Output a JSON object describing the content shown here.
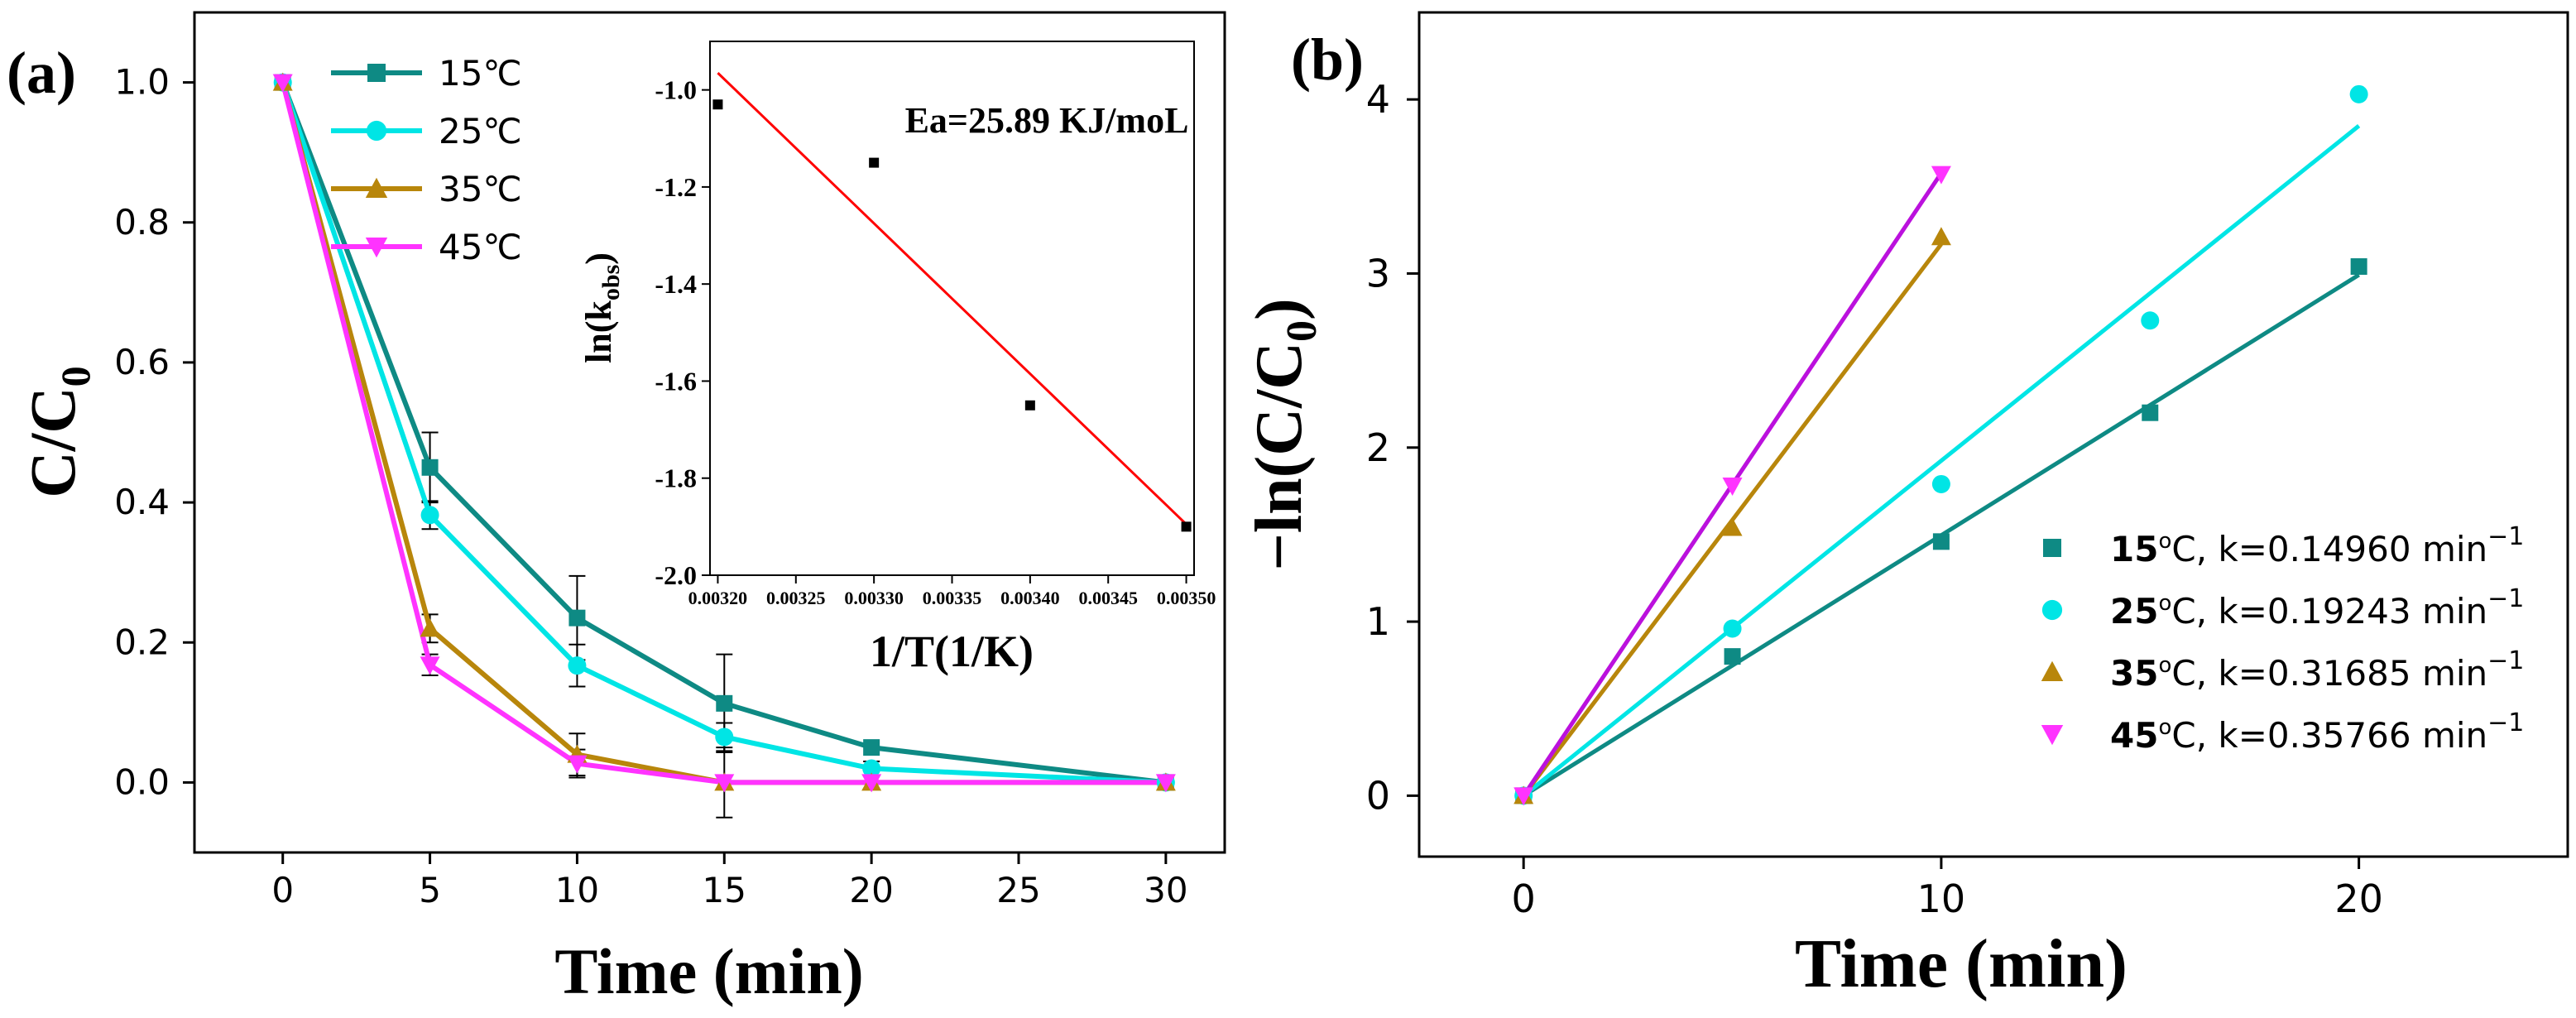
{
  "chart_data": [
    {
      "panel": "(a)",
      "type": "line",
      "xlabel": "Time (min)",
      "ylabel": "C/C0",
      "ylabel_main": "C/C",
      "ylabel_sub": "0",
      "xlim": [
        -3,
        32
      ],
      "ylim": [
        -0.1,
        1.1
      ],
      "xticks": [
        "0",
        "5",
        "10",
        "15",
        "20",
        "25",
        "30"
      ],
      "yticks": [
        "0.0",
        "0.2",
        "0.4",
        "0.6",
        "0.8",
        "1.0"
      ],
      "legend_position": "top-left",
      "series": [
        {
          "name": "15℃",
          "color": "#0e8a84",
          "marker": "square",
          "x": [
            0,
            5,
            10,
            15,
            20,
            30
          ],
          "y": [
            1.0,
            0.45,
            0.235,
            0.113,
            0.05,
            0.0
          ],
          "err": [
            0,
            0.05,
            0.06,
            0.07,
            0,
            0
          ]
        },
        {
          "name": "25℃",
          "color": "#00e5e5",
          "marker": "circle",
          "x": [
            0,
            5,
            10,
            15,
            20,
            30
          ],
          "y": [
            1.0,
            0.382,
            0.167,
            0.065,
            0.02,
            0.0
          ],
          "err": [
            0,
            0.02,
            0.03,
            0.02,
            0.01,
            0
          ]
        },
        {
          "name": "35℃",
          "color": "#b8860b",
          "marker": "triangle-up",
          "x": [
            0,
            5,
            10,
            15,
            20,
            30
          ],
          "y": [
            1.0,
            0.22,
            0.04,
            0.0,
            0.0,
            0.0
          ],
          "err": [
            0,
            0.02,
            0.03,
            0.05,
            0,
            0
          ]
        },
        {
          "name": "45℃",
          "color": "#ff33ff",
          "marker": "triangle-down",
          "x": [
            0,
            5,
            10,
            15,
            20,
            30
          ],
          "y": [
            1.0,
            0.168,
            0.027,
            0.0,
            0.0,
            0.0
          ],
          "err": [
            0,
            0.015,
            0.02,
            0,
            0,
            0
          ]
        }
      ],
      "inset": {
        "type": "scatter",
        "xlabel": "1/T(1/K)",
        "ylabel": "ln(kobs)",
        "ylabel_main": "ln(k",
        "ylabel_sub": "obs",
        "ylabel_close": ")",
        "annotation": "Ea=25.89 KJ/moL",
        "xlim": [
          0.003195,
          0.003505
        ],
        "ylim": [
          -2.0,
          -0.9
        ],
        "xticks": [
          "0.00320",
          "0.00325",
          "0.00330",
          "0.00335",
          "0.00340",
          "0.00345",
          "0.00350"
        ],
        "yticks": [
          "-1.0",
          "-1.2",
          "-1.4",
          "-1.6",
          "-1.8",
          "-2.0"
        ],
        "points": {
          "x": [
            0.0032,
            0.0033,
            0.0034,
            0.0035
          ],
          "y": [
            -1.03,
            -1.15,
            -1.65,
            -1.9
          ]
        },
        "fit": {
          "color": "#ff0000",
          "x": [
            0.0032,
            0.0035
          ],
          "y": [
            -0.965,
            -1.895
          ]
        }
      }
    },
    {
      "panel": "(b)",
      "type": "scatter",
      "xlabel": "Time (min)",
      "ylabel": "-ln(C/C0)",
      "ylabel_main": "−ln(C/C",
      "ylabel_sub": "0",
      "ylabel_close": ")",
      "xlim": [
        -2.5,
        25
      ],
      "ylim": [
        -0.35,
        4.5
      ],
      "xticks": [
        "0",
        "10",
        "20"
      ],
      "yticks": [
        "0",
        "1",
        "2",
        "3",
        "4"
      ],
      "legend_position": "bottom-right",
      "series": [
        {
          "name": "15℃",
          "label_prefix": "15",
          "label_mid": "C, k=0.14960 min",
          "label_sup": "−1",
          "k": 0.1496,
          "color": "#0e8a84",
          "marker": "square",
          "x": [
            0,
            5,
            10,
            15,
            20
          ],
          "y": [
            0.0,
            0.8,
            1.46,
            2.2,
            3.04
          ],
          "fit_x": [
            0,
            20
          ]
        },
        {
          "name": "25℃",
          "label_prefix": "25",
          "label_mid": "C, k=0.19243 min",
          "label_sup": "−1",
          "k": 0.19243,
          "color": "#00e5e5",
          "marker": "circle",
          "x": [
            0,
            5,
            10,
            15,
            20
          ],
          "y": [
            0.0,
            0.96,
            1.79,
            2.73,
            4.03
          ],
          "fit_x": [
            0,
            20
          ]
        },
        {
          "name": "35℃",
          "label_prefix": "35",
          "label_mid": "C, k=0.31685 min",
          "label_sup": "−1",
          "k": 0.31685,
          "color": "#b8860b",
          "marker": "triangle-up",
          "x": [
            0,
            5,
            10
          ],
          "y": [
            0.0,
            1.54,
            3.21
          ],
          "fit_x": [
            0,
            10
          ]
        },
        {
          "name": "45℃",
          "label_prefix": "45",
          "label_mid": "C, k=0.35766 min",
          "label_sup": "−1",
          "k": 0.35766,
          "color": "#ff33ff",
          "fit_color": "#bb11dd",
          "marker": "triangle-down",
          "x": [
            0,
            5,
            10
          ],
          "y": [
            0.0,
            1.78,
            3.57
          ],
          "fit_x": [
            0,
            10
          ]
        }
      ]
    }
  ]
}
